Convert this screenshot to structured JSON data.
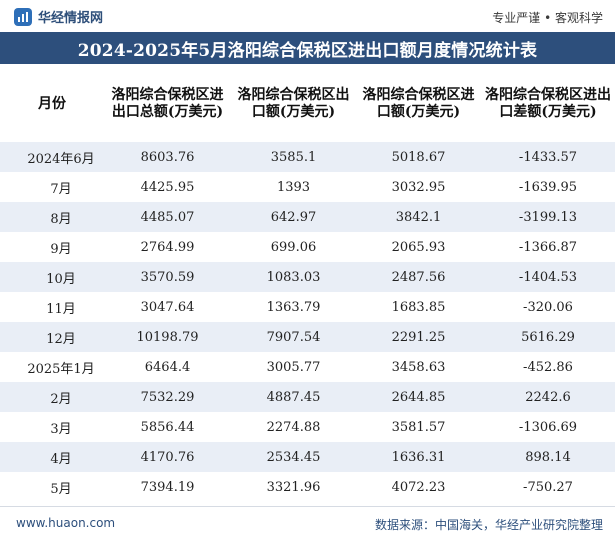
{
  "brand": {
    "name": "华经情报网",
    "logo_icon": "huajing-logo-icon"
  },
  "slogan": "专业严谨 • 客观科学",
  "title": "2024-2025年5月洛阳综合保税区进出口额月度情况统计表",
  "columns": [
    "月份",
    "洛阳综合保税区进出口总额(万美元)",
    "洛阳综合保税区出口额(万美元)",
    "洛阳综合保税区进口额(万美元)",
    "洛阳综合保税区进出口差额(万美元)"
  ],
  "rows": [
    [
      "2024年6月",
      "8603.76",
      "3585.1",
      "5018.67",
      "-1433.57"
    ],
    [
      "7月",
      "4425.95",
      "1393",
      "3032.95",
      "-1639.95"
    ],
    [
      "8月",
      "4485.07",
      "642.97",
      "3842.1",
      "-3199.13"
    ],
    [
      "9月",
      "2764.99",
      "699.06",
      "2065.93",
      "-1366.87"
    ],
    [
      "10月",
      "3570.59",
      "1083.03",
      "2487.56",
      "-1404.53"
    ],
    [
      "11月",
      "3047.64",
      "1363.79",
      "1683.85",
      "-320.06"
    ],
    [
      "12月",
      "10198.79",
      "7907.54",
      "2291.25",
      "5616.29"
    ],
    [
      "2025年1月",
      "6464.4",
      "3005.77",
      "3458.63",
      "-452.86"
    ],
    [
      "2月",
      "7532.29",
      "4887.45",
      "2644.85",
      "2242.6"
    ],
    [
      "3月",
      "5856.44",
      "2274.88",
      "3581.57",
      "-1306.69"
    ],
    [
      "4月",
      "4170.76",
      "2534.45",
      "1636.31",
      "898.14"
    ],
    [
      "5月",
      "7394.19",
      "3321.96",
      "4072.23",
      "-750.27"
    ]
  ],
  "footer": {
    "url": "www.huaon.com",
    "source": "数据来源：中国海关，华经产业研究院整理"
  },
  "colors": {
    "title_bar": "#2d4f7c",
    "row_stripe": "#e9eef6",
    "brand_blue": "#2e6fb8"
  }
}
